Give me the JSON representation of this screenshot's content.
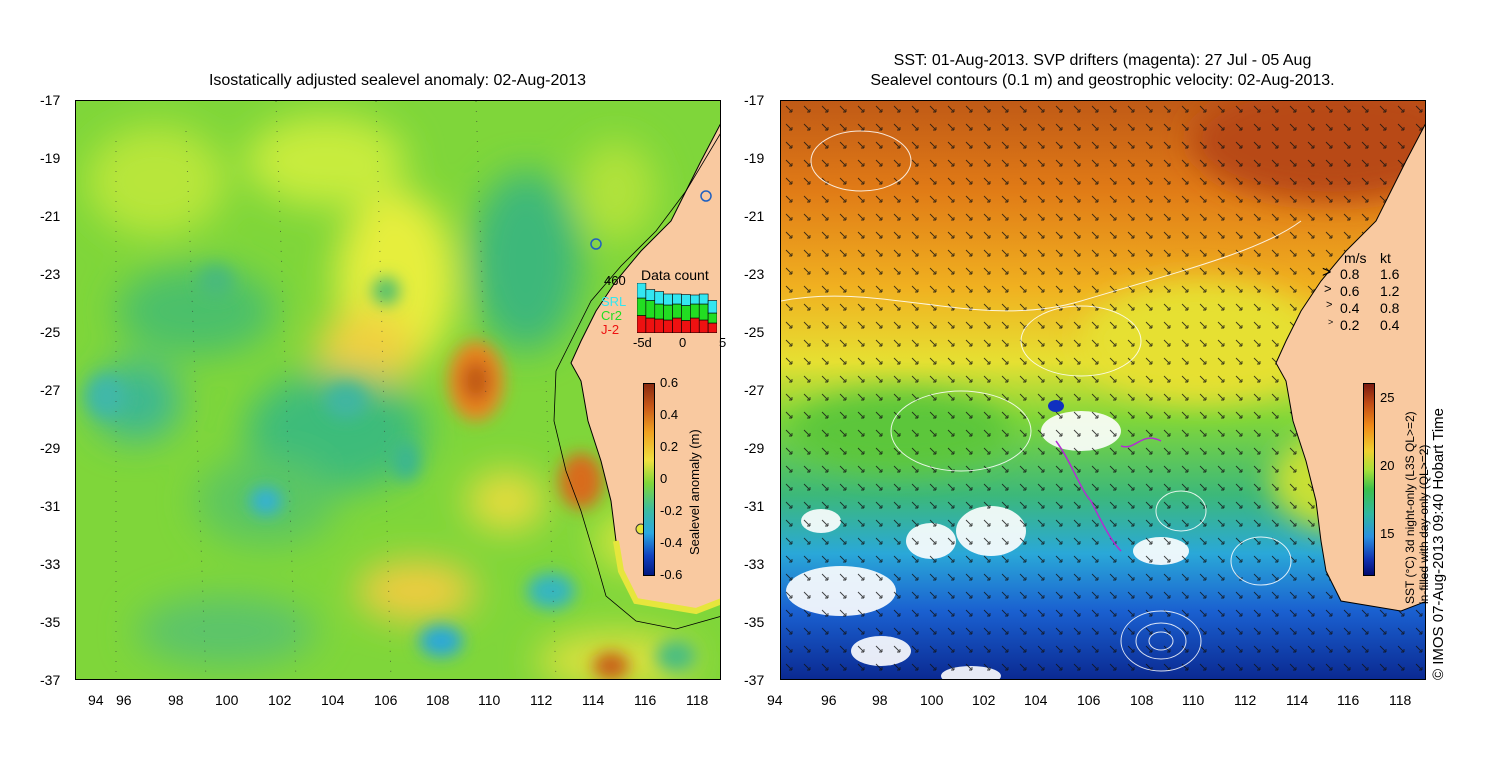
{
  "left": {
    "title": "Isostatically adjusted sealevel anomaly: 02-Aug-2013",
    "x_ticks": [
      "94",
      "96",
      "98",
      "100",
      "102",
      "104",
      "106",
      "108",
      "110",
      "112",
      "114",
      "116",
      "118"
    ],
    "y_ticks": [
      "-17",
      "-19",
      "-21",
      "-23",
      "-25",
      "-27",
      "-29",
      "-31",
      "-33",
      "-35",
      "-37"
    ],
    "data_count": {
      "label": "Data count",
      "max": "460",
      "series": [
        "SRL",
        "Cr2",
        "J-2"
      ],
      "series_colors": [
        "#33e6f0",
        "#22dd22",
        "#ee1111"
      ],
      "x_ticks": [
        "-5d",
        "0",
        "5"
      ],
      "bars": [
        {
          "srl": 0.3,
          "cr2": 0.35,
          "j2": 0.35
        },
        {
          "srl": 0.22,
          "cr2": 0.35,
          "j2": 0.3
        },
        {
          "srl": 0.25,
          "cr2": 0.3,
          "j2": 0.28
        },
        {
          "srl": 0.22,
          "cr2": 0.3,
          "j2": 0.26
        },
        {
          "srl": 0.2,
          "cr2": 0.28,
          "j2": 0.3
        },
        {
          "srl": 0.22,
          "cr2": 0.3,
          "j2": 0.25
        },
        {
          "srl": 0.18,
          "cr2": 0.28,
          "j2": 0.3
        },
        {
          "srl": 0.2,
          "cr2": 0.32,
          "j2": 0.26
        },
        {
          "srl": 0.25,
          "cr2": 0.2,
          "j2": 0.2
        }
      ]
    },
    "colorbar": {
      "label": "Sealevel anomaly (m)",
      "ticks": [
        "0.6",
        "0.4",
        "0.2",
        "0",
        "-0.2",
        "-0.4",
        "-0.6"
      ]
    }
  },
  "right": {
    "title_line1": "SST: 01-Aug-2013. SVP drifters (magenta): 27 Jul - 05 Aug",
    "title_line2": "Sealevel contours (0.1 m) and geostrophic velocity: 02-Aug-2013.",
    "x_ticks": [
      "94",
      "96",
      "98",
      "100",
      "102",
      "104",
      "106",
      "108",
      "110",
      "112",
      "114",
      "116",
      "118"
    ],
    "y_ticks": [
      "-17",
      "-19",
      "-21",
      "-23",
      "-25",
      "-27",
      "-29",
      "-31",
      "-33",
      "-35",
      "-37"
    ],
    "velocity_legend": {
      "header_ms": "m/s",
      "header_kt": "kt",
      "rows": [
        {
          "ms": "0.8",
          "kt": "1.6"
        },
        {
          "ms": "0.6",
          "kt": "1.2"
        },
        {
          "ms": "0.4",
          "kt": "0.8"
        },
        {
          "ms": "0.2",
          "kt": "0.4"
        }
      ]
    },
    "colorbar": {
      "ticks": [
        "25",
        "20",
        "15"
      ],
      "label_line1": "SST (°C) 3d night-only (L3S QL>=2)",
      "label_line2": "in-filled with day-only (QL>=2)"
    },
    "credit": "© IMOS 07-Aug-2013 09:40 Hobart Time"
  },
  "colors": {
    "land": "#f9c9a0",
    "frame": "#000000"
  }
}
